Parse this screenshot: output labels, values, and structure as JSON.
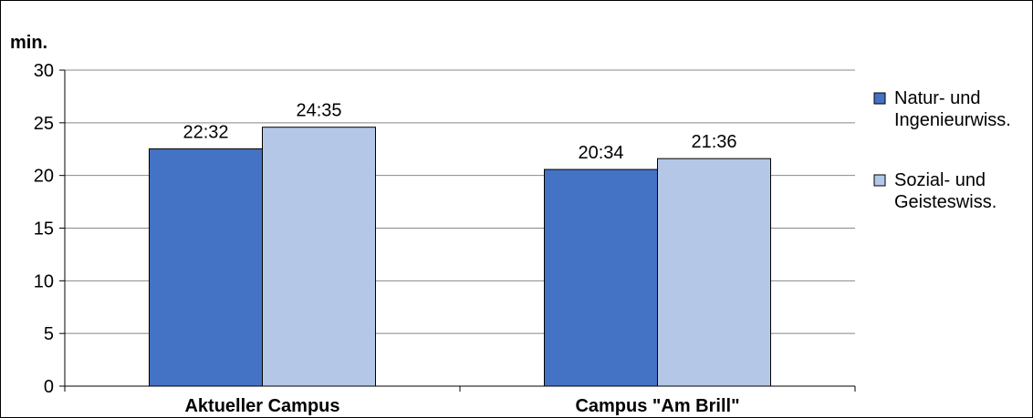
{
  "chart_data": {
    "type": "bar",
    "unit_label": "min.",
    "categories": [
      "Aktueller Campus",
      "Campus \"Am Brill\""
    ],
    "series": [
      {
        "name": "Natur- und Ingenieurwiss.",
        "legend_lines": [
          "Natur- und",
          "Ingenieurwiss."
        ],
        "color": "#4472C4",
        "values": [
          22.53,
          20.57
        ],
        "labels": [
          "22:32",
          "20:34"
        ]
      },
      {
        "name": "Sozial- und Geisteswiss.",
        "legend_lines": [
          "Sozial- und",
          "Geisteswiss."
        ],
        "color": "#B4C7E7",
        "values": [
          24.58,
          21.6
        ],
        "labels": [
          "24:35",
          "21:36"
        ]
      }
    ],
    "ylim": [
      0,
      30
    ],
    "yticks": [
      0,
      5,
      10,
      15,
      20,
      25,
      30
    ],
    "grid": true,
    "legend_position": "right"
  }
}
